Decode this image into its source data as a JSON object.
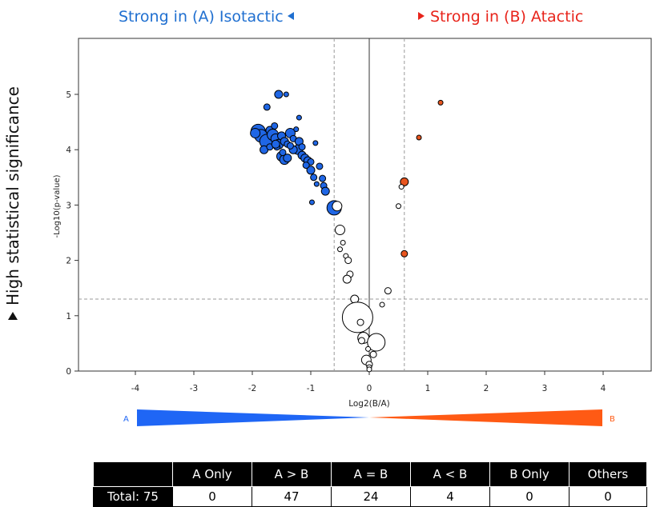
{
  "header": {
    "left": "Strong in (A) Isotactic",
    "right": "Strong in (B) Atactic"
  },
  "side_label": "High statistical significance",
  "colors": {
    "a_series": "#1f66e5",
    "b_series": "#e8551f",
    "neutral": "#ffffff",
    "bar_left": "#1f66f5",
    "bar_right": "#ff5a14",
    "title_left": "#1f6fd0",
    "title_right": "#e8241b"
  },
  "scale_bar": {
    "left_label": "A",
    "right_label": "B"
  },
  "chart_data": {
    "type": "scatter",
    "title": "",
    "xlabel": "Log2(B/A)",
    "ylabel": "-Log10(p-value)",
    "xlim": [
      -5,
      5
    ],
    "ylim": [
      0,
      6
    ],
    "xticks": [
      -4,
      -3,
      -2,
      -1,
      0,
      1,
      2,
      3,
      4
    ],
    "yticks": [
      0,
      1,
      2,
      3,
      4,
      5
    ],
    "reference_lines": {
      "x": [
        -0.6,
        0,
        0.6
      ],
      "y": [
        1.3
      ]
    },
    "series": [
      {
        "group": "A > B",
        "color": "#1f66e5",
        "points": [
          {
            "x": -1.9,
            "y": 4.33,
            "size": 9
          },
          {
            "x": -1.85,
            "y": 4.25,
            "size": 8
          },
          {
            "x": -1.75,
            "y": 4.15,
            "size": 9
          },
          {
            "x": -1.7,
            "y": 4.35,
            "size": 5
          },
          {
            "x": -1.65,
            "y": 4.27,
            "size": 7
          },
          {
            "x": -1.6,
            "y": 4.2,
            "size": 6
          },
          {
            "x": -1.55,
            "y": 4.1,
            "size": 6
          },
          {
            "x": -1.5,
            "y": 4.25,
            "size": 5
          },
          {
            "x": -1.45,
            "y": 4.15,
            "size": 5
          },
          {
            "x": -1.62,
            "y": 4.43,
            "size": 4
          },
          {
            "x": -1.58,
            "y": 4.05,
            "size": 4
          },
          {
            "x": -1.8,
            "y": 4.0,
            "size": 5
          },
          {
            "x": -1.7,
            "y": 4.05,
            "size": 4
          },
          {
            "x": -1.35,
            "y": 4.3,
            "size": 6
          },
          {
            "x": -1.3,
            "y": 4.2,
            "size": 4
          },
          {
            "x": -1.25,
            "y": 4.37,
            "size": 3
          },
          {
            "x": -1.4,
            "y": 4.1,
            "size": 4
          },
          {
            "x": -1.2,
            "y": 4.15,
            "size": 5
          },
          {
            "x": -1.22,
            "y": 4.0,
            "size": 6
          },
          {
            "x": -1.15,
            "y": 3.9,
            "size": 5
          },
          {
            "x": -1.1,
            "y": 3.85,
            "size": 5
          },
          {
            "x": -1.05,
            "y": 3.8,
            "size": 5
          },
          {
            "x": -1.0,
            "y": 3.78,
            "size": 4
          },
          {
            "x": -1.5,
            "y": 3.88,
            "size": 6
          },
          {
            "x": -1.45,
            "y": 3.82,
            "size": 6
          },
          {
            "x": -1.4,
            "y": 3.85,
            "size": 5
          },
          {
            "x": -1.55,
            "y": 5.0,
            "size": 5
          },
          {
            "x": -1.42,
            "y": 5.0,
            "size": 3
          },
          {
            "x": -1.75,
            "y": 4.77,
            "size": 4
          },
          {
            "x": -1.2,
            "y": 4.58,
            "size": 3
          },
          {
            "x": -0.92,
            "y": 4.12,
            "size": 3
          },
          {
            "x": -1.0,
            "y": 3.63,
            "size": 5
          },
          {
            "x": -0.95,
            "y": 3.5,
            "size": 4
          },
          {
            "x": -0.85,
            "y": 3.7,
            "size": 4
          },
          {
            "x": -0.8,
            "y": 3.48,
            "size": 4
          },
          {
            "x": -0.9,
            "y": 3.38,
            "size": 3
          },
          {
            "x": -0.78,
            "y": 3.35,
            "size": 4
          },
          {
            "x": -0.75,
            "y": 3.25,
            "size": 5
          },
          {
            "x": -0.98,
            "y": 3.05,
            "size": 3
          },
          {
            "x": -0.6,
            "y": 2.95,
            "size": 9
          },
          {
            "x": -1.3,
            "y": 4.0,
            "size": 5
          },
          {
            "x": -1.15,
            "y": 4.05,
            "size": 4
          },
          {
            "x": -1.6,
            "y": 4.1,
            "size": 5
          },
          {
            "x": -1.48,
            "y": 3.95,
            "size": 4
          },
          {
            "x": -1.35,
            "y": 4.07,
            "size": 4
          },
          {
            "x": -1.95,
            "y": 4.3,
            "size": 6
          },
          {
            "x": -1.08,
            "y": 3.72,
            "size": 4
          }
        ]
      },
      {
        "group": "A < B",
        "color": "#e8551f",
        "points": [
          {
            "x": 1.22,
            "y": 4.85,
            "size": 3
          },
          {
            "x": 0.85,
            "y": 4.22,
            "size": 3
          },
          {
            "x": 0.6,
            "y": 3.42,
            "size": 5
          },
          {
            "x": 0.6,
            "y": 2.12,
            "size": 4
          }
        ]
      },
      {
        "group": "A = B",
        "color": "#ffffff",
        "points": [
          {
            "x": -0.55,
            "y": 2.98,
            "size": 6
          },
          {
            "x": -0.5,
            "y": 2.55,
            "size": 6
          },
          {
            "x": -0.45,
            "y": 2.32,
            "size": 3
          },
          {
            "x": -0.5,
            "y": 2.2,
            "size": 3
          },
          {
            "x": -0.4,
            "y": 2.08,
            "size": 3
          },
          {
            "x": -0.36,
            "y": 2.0,
            "size": 4
          },
          {
            "x": -0.33,
            "y": 1.75,
            "size": 4
          },
          {
            "x": -0.38,
            "y": 1.66,
            "size": 5
          },
          {
            "x": -0.25,
            "y": 1.3,
            "size": 5
          },
          {
            "x": -0.2,
            "y": 0.97,
            "size": 19
          },
          {
            "x": -0.15,
            "y": 0.88,
            "size": 4
          },
          {
            "x": -0.1,
            "y": 0.6,
            "size": 7
          },
          {
            "x": -0.13,
            "y": 0.55,
            "size": 4
          },
          {
            "x": 0.12,
            "y": 0.52,
            "size": 11
          },
          {
            "x": 0.07,
            "y": 0.3,
            "size": 4
          },
          {
            "x": -0.05,
            "y": 0.2,
            "size": 6
          },
          {
            "x": 0.0,
            "y": 0.12,
            "size": 4
          },
          {
            "x": 0.0,
            "y": 0.07,
            "size": 3
          },
          {
            "x": 0.0,
            "y": 0.03,
            "size": 3
          },
          {
            "x": 0.32,
            "y": 1.45,
            "size": 4
          },
          {
            "x": 0.22,
            "y": 1.2,
            "size": 3
          },
          {
            "x": 0.5,
            "y": 2.98,
            "size": 3
          },
          {
            "x": 0.55,
            "y": 3.33,
            "size": 3
          },
          {
            "x": -0.02,
            "y": 0.4,
            "size": 3
          }
        ]
      }
    ]
  },
  "table": {
    "headers": [
      "",
      "A Only",
      "A > B",
      "A = B",
      "A < B",
      "B Only",
      "Others"
    ],
    "row": [
      "Total: 75",
      "0",
      "47",
      "24",
      "4",
      "0",
      "0"
    ]
  }
}
